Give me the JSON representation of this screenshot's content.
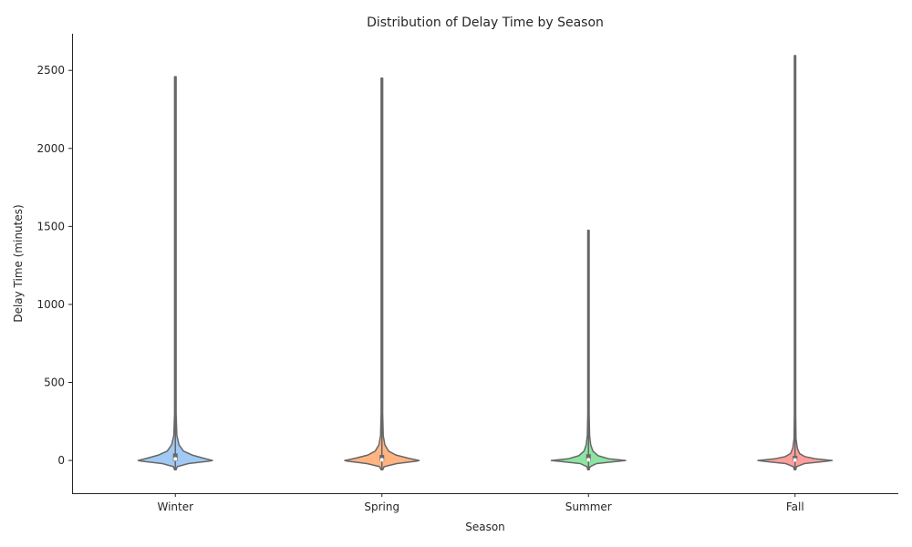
{
  "chart_data": {
    "type": "violin",
    "title": "Distribution of Delay Time by Season",
    "xlabel": "Season",
    "ylabel": "Delay Time (minutes)",
    "categories": [
      "Winter",
      "Spring",
      "Summer",
      "Fall"
    ],
    "yticks": [
      0,
      500,
      1000,
      1500,
      2000,
      2500
    ],
    "ylim": [
      -210,
      2735
    ],
    "grid": false,
    "series": [
      {
        "category": "Winter",
        "color": "#a1c9f4",
        "min": -60,
        "max": 2460,
        "q1": -2,
        "median": 10,
        "q3": 45,
        "density_profile": [
          {
            "y": -60,
            "w": 0.01
          },
          {
            "y": -40,
            "w": 0.05
          },
          {
            "y": -20,
            "w": 0.35
          },
          {
            "y": -5,
            "w": 0.9
          },
          {
            "y": 0,
            "w": 1.0
          },
          {
            "y": 15,
            "w": 0.75
          },
          {
            "y": 35,
            "w": 0.45
          },
          {
            "y": 60,
            "w": 0.22
          },
          {
            "y": 100,
            "w": 0.1
          },
          {
            "y": 160,
            "w": 0.04
          },
          {
            "y": 300,
            "w": 0.012
          },
          {
            "y": 800,
            "w": 0.004
          },
          {
            "y": 2460,
            "w": 0.003
          }
        ]
      },
      {
        "category": "Spring",
        "color": "#ffb482",
        "min": -60,
        "max": 2450,
        "q1": -3,
        "median": 5,
        "q3": 35,
        "density_profile": [
          {
            "y": -60,
            "w": 0.01
          },
          {
            "y": -40,
            "w": 0.06
          },
          {
            "y": -20,
            "w": 0.4
          },
          {
            "y": -5,
            "w": 0.92
          },
          {
            "y": 0,
            "w": 1.0
          },
          {
            "y": 15,
            "w": 0.7
          },
          {
            "y": 35,
            "w": 0.38
          },
          {
            "y": 60,
            "w": 0.18
          },
          {
            "y": 100,
            "w": 0.08
          },
          {
            "y": 160,
            "w": 0.035
          },
          {
            "y": 300,
            "w": 0.012
          },
          {
            "y": 800,
            "w": 0.004
          },
          {
            "y": 2450,
            "w": 0.003
          }
        ]
      },
      {
        "category": "Summer",
        "color": "#8de5a1",
        "min": -60,
        "max": 1475,
        "q1": -3,
        "median": 5,
        "q3": 40,
        "density_profile": [
          {
            "y": -60,
            "w": 0.01
          },
          {
            "y": -40,
            "w": 0.04
          },
          {
            "y": -20,
            "w": 0.22
          },
          {
            "y": -8,
            "w": 0.7
          },
          {
            "y": 0,
            "w": 1.0
          },
          {
            "y": 10,
            "w": 0.55
          },
          {
            "y": 30,
            "w": 0.26
          },
          {
            "y": 60,
            "w": 0.12
          },
          {
            "y": 100,
            "w": 0.06
          },
          {
            "y": 160,
            "w": 0.03
          },
          {
            "y": 300,
            "w": 0.01
          },
          {
            "y": 700,
            "w": 0.004
          },
          {
            "y": 1475,
            "w": 0.003
          }
        ]
      },
      {
        "category": "Fall",
        "color": "#ff9f9b",
        "min": -60,
        "max": 2595,
        "q1": -4,
        "median": 3,
        "q3": 30,
        "density_profile": [
          {
            "y": -60,
            "w": 0.01
          },
          {
            "y": -40,
            "w": 0.04
          },
          {
            "y": -20,
            "w": 0.25
          },
          {
            "y": -8,
            "w": 0.75
          },
          {
            "y": 0,
            "w": 1.0
          },
          {
            "y": 10,
            "w": 0.55
          },
          {
            "y": 25,
            "w": 0.26
          },
          {
            "y": 45,
            "w": 0.12
          },
          {
            "y": 80,
            "w": 0.06
          },
          {
            "y": 140,
            "w": 0.025
          },
          {
            "y": 300,
            "w": 0.01
          },
          {
            "y": 800,
            "w": 0.004
          },
          {
            "y": 2595,
            "w": 0.003
          }
        ]
      }
    ]
  }
}
